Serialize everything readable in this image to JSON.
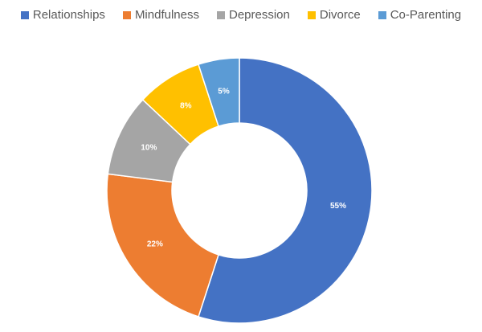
{
  "chart_data": {
    "type": "pie",
    "donut": true,
    "legend_position": "top",
    "categories": [
      "Relationships",
      "Mindfulness",
      "Depression",
      "Divorce",
      "Co-Parenting"
    ],
    "values": [
      55,
      22,
      10,
      8,
      5
    ],
    "labels": [
      "55%",
      "22%",
      "10%",
      "8%",
      "5%"
    ],
    "colors": [
      "#4472C4",
      "#ED7D31",
      "#A5A5A5",
      "#FFC000",
      "#5B9BD5"
    ]
  }
}
